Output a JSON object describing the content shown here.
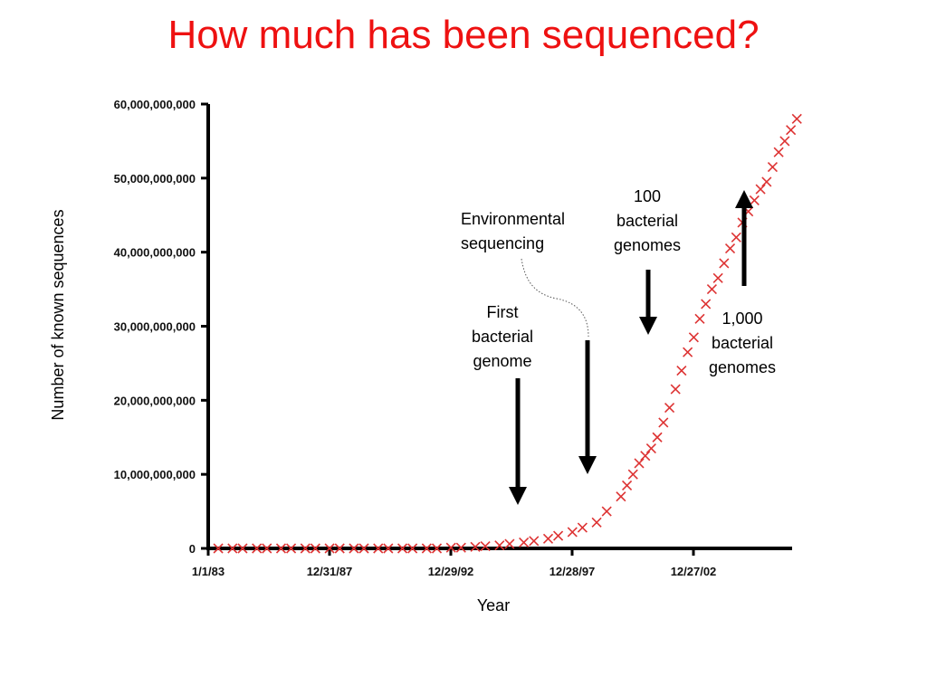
{
  "title": "How much has been sequenced?",
  "chart_data": {
    "type": "scatter",
    "title": "How much has been sequenced?",
    "xlabel": "Year",
    "ylabel": "Number of known sequences",
    "ylim": [
      0,
      60000000000
    ],
    "xlim": [
      "1983-01-01",
      "2008-01-01"
    ],
    "x_ticks": [
      "1/1/83",
      "12/31/87",
      "12/29/92",
      "12/28/97",
      "12/27/02"
    ],
    "y_ticks": [
      "0",
      "10,000,000,000",
      "20,000,000,000",
      "30,000,000,000",
      "40,000,000,000",
      "50,000,000,000",
      "60,000,000,000"
    ],
    "y_tick_values": [
      0,
      10000000000,
      20000000000,
      30000000000,
      40000000000,
      50000000000,
      60000000000
    ],
    "grid": false,
    "marker": "x",
    "marker_color": "#dd3333",
    "series": [
      {
        "x": [
          "1983-06-01",
          "1984-01-01",
          "1984-06-01",
          "1985-01-01",
          "1985-06-01",
          "1986-01-01",
          "1986-06-01",
          "1987-01-01",
          "1987-06-01",
          "1988-01-01",
          "1988-06-01",
          "1989-01-01",
          "1989-06-01",
          "1990-01-01",
          "1990-06-01",
          "1991-01-01",
          "1991-06-01",
          "1992-01-01",
          "1992-06-01",
          "1993-01-01",
          "1993-06-01",
          "1994-01-01",
          "1994-06-01",
          "1995-01-01",
          "1995-06-01",
          "1996-01-01",
          "1996-06-01",
          "1997-01-01",
          "1997-06-01",
          "1998-01-01",
          "1998-06-01",
          "1999-01-01",
          "1999-06-01",
          "2000-01-01",
          "2000-04-01",
          "2000-07-01",
          "2000-10-01",
          "2001-01-01",
          "2001-04-01",
          "2001-07-01",
          "2001-10-01",
          "2002-01-01",
          "2002-04-01",
          "2002-07-01",
          "2002-10-01",
          "2003-01-01",
          "2003-04-01",
          "2003-07-01",
          "2003-10-01",
          "2004-01-01",
          "2004-04-01",
          "2004-07-01",
          "2004-10-01",
          "2005-01-01",
          "2005-04-01",
          "2005-07-01",
          "2005-10-01",
          "2006-01-01",
          "2006-04-01",
          "2006-07-01",
          "2006-10-01",
          "2007-01-01",
          "2007-04-01"
        ],
        "y": [
          0,
          0,
          0,
          0,
          0,
          0,
          0,
          0,
          0,
          0,
          0,
          0,
          0,
          0,
          0,
          0,
          0,
          0,
          0,
          100000000,
          100000000,
          200000000,
          300000000,
          400000000,
          600000000,
          800000000,
          1000000000,
          1300000000,
          1700000000,
          2200000000,
          2800000000,
          3500000000,
          5000000000,
          7000000000,
          8500000000,
          10000000000,
          11500000000,
          12500000000,
          13500000000,
          15000000000,
          17000000000,
          19000000000,
          21500000000,
          24000000000,
          26500000000,
          28500000000,
          31000000000,
          33000000000,
          35000000000,
          36500000000,
          38500000000,
          40500000000,
          42000000000,
          44000000000,
          45500000000,
          47000000000,
          48500000000,
          49500000000,
          51500000000,
          53500000000,
          55000000000,
          56500000000,
          58000000000
        ]
      }
    ],
    "annotations": [
      {
        "lines": [
          "First",
          "bacterial",
          "genome"
        ],
        "arrow": "down"
      },
      {
        "lines": [
          "Environmental",
          "sequencing"
        ],
        "arrow": "down"
      },
      {
        "lines": [
          "100",
          "bacterial",
          "genomes"
        ],
        "arrow": "down"
      },
      {
        "lines": [
          "1,000",
          "bacterial",
          "genomes"
        ],
        "arrow": "up"
      }
    ]
  }
}
